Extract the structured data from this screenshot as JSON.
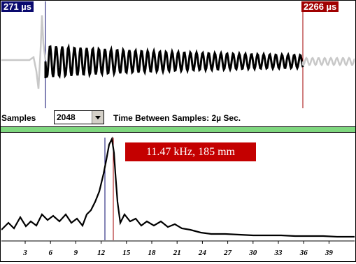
{
  "time_panel": {
    "cursor_left_label": "271 µs",
    "cursor_right_label": "2266 µs"
  },
  "controls": {
    "samples_label": "Samples",
    "samples_value": "2048",
    "time_between_label": "Time Between Samples: 2µ Sec."
  },
  "spectrum_panel": {
    "peak_annotation": "11.47 kHz, 185 mm",
    "x_ticks": [
      "3",
      "6",
      "9",
      "12",
      "15",
      "18",
      "21",
      "24",
      "27",
      "30",
      "33",
      "36",
      "39"
    ]
  },
  "colors": {
    "left_cursor": "#0a0a6e",
    "right_cursor": "#a00000",
    "divider": "#7fd77f",
    "annotation_bg": "#c40000"
  }
}
